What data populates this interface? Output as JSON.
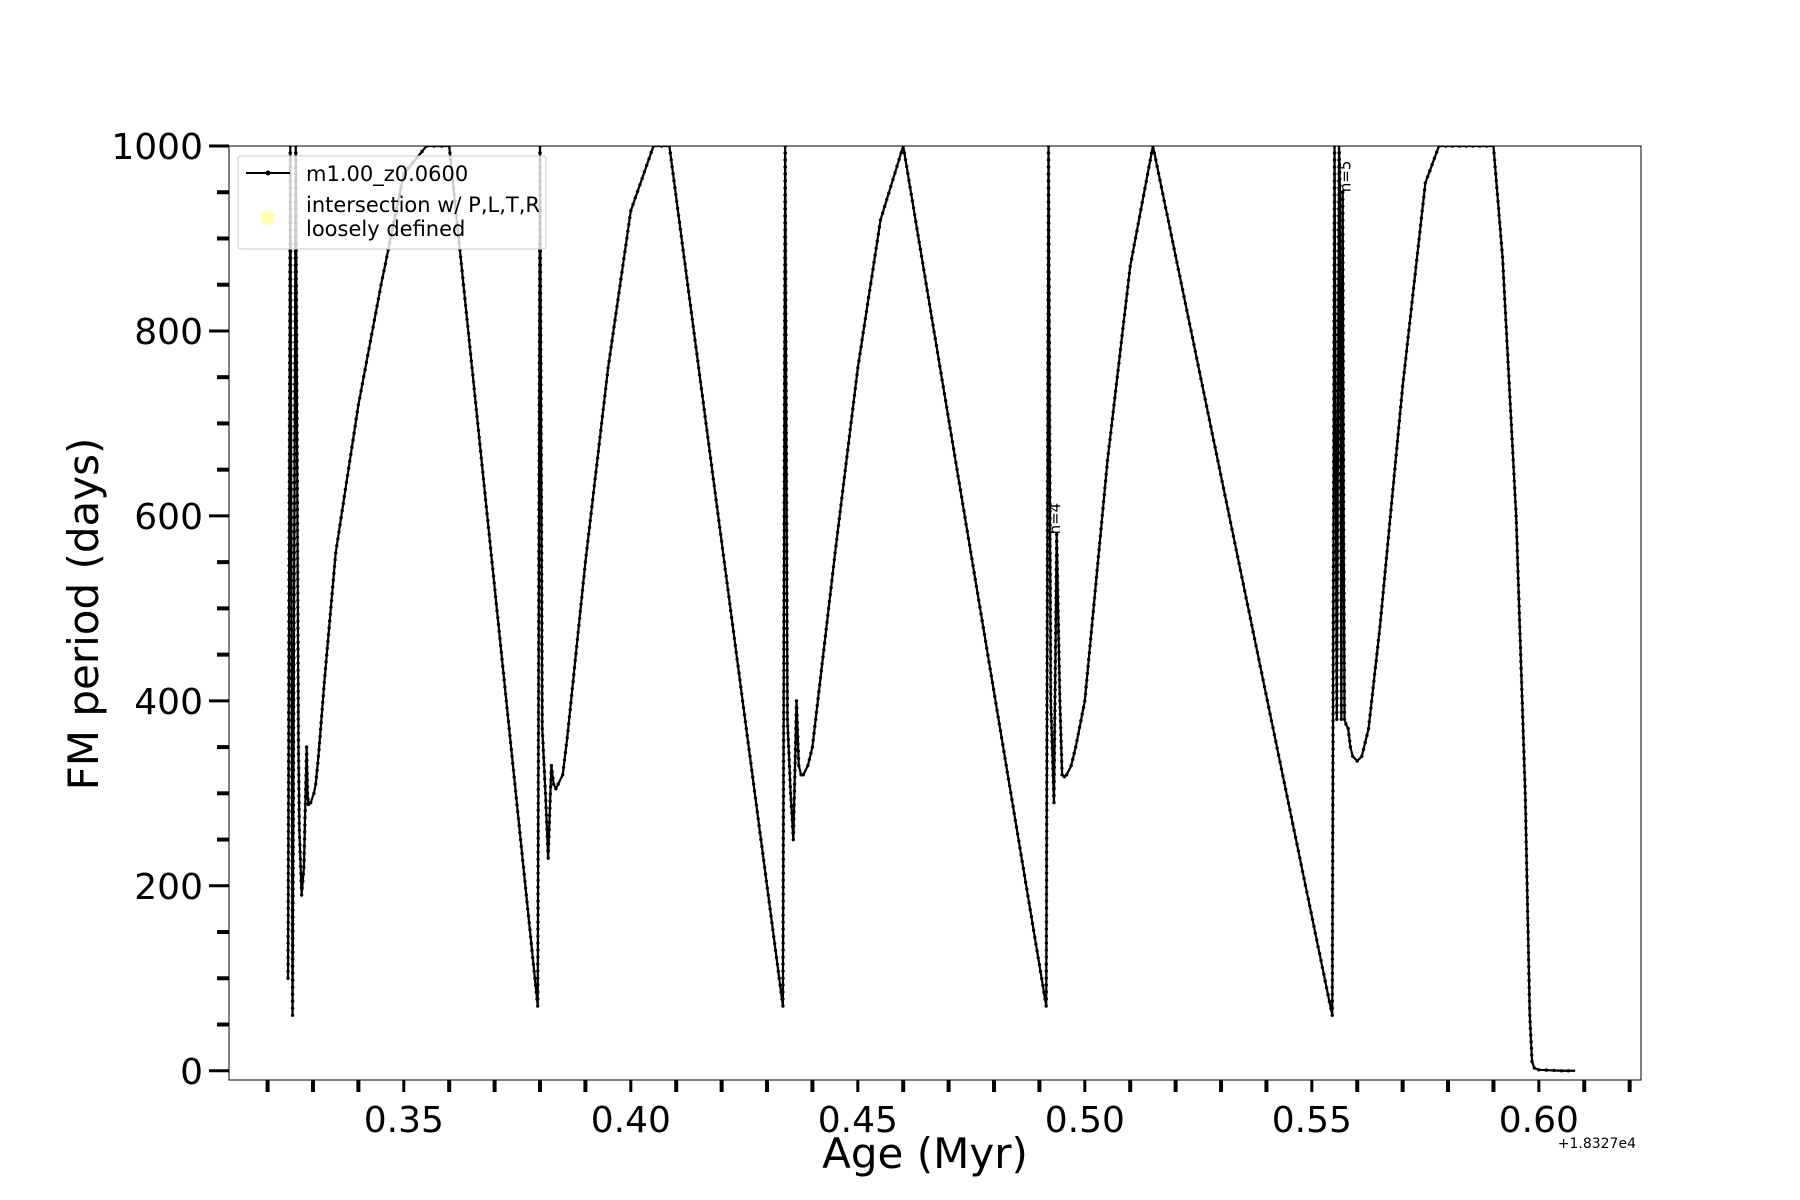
{
  "chart_data": {
    "type": "line",
    "xlabel": "Age (Myr)",
    "ylabel": "FM period (days)",
    "x_offset_label": "+1.8327e4",
    "xlim": [
      0.3115,
      0.6225
    ],
    "ylim": [
      -10,
      1000
    ],
    "x_major_ticks": [
      0.35,
      0.4,
      0.45,
      0.5,
      0.55,
      0.6
    ],
    "x_tick_labels": [
      "0.35",
      "0.40",
      "0.45",
      "0.50",
      "0.55",
      "0.60"
    ],
    "y_major_ticks": [
      0,
      200,
      400,
      600,
      800,
      1000
    ],
    "y_tick_labels": [
      "0",
      "200",
      "400",
      "600",
      "800",
      "1000"
    ],
    "x_minor_step": 0.01,
    "y_minor_step": 50,
    "grid": false,
    "legend": {
      "position": "upper-left",
      "entries": [
        {
          "label": "m1.00_z0.0600",
          "marker": "line-dot",
          "color": "#000000"
        },
        {
          "label": "intersection w/ P,L,T,R\nloosely defined",
          "marker": "circle",
          "color": "#ffffb3"
        }
      ]
    },
    "annotations": [
      {
        "text": "n=4",
        "x": 0.4945,
        "y": 580
      },
      {
        "text": "n=5",
        "x": 0.5585,
        "y": 950
      }
    ],
    "series": [
      {
        "name": "m1.00_z0.0600",
        "color": "#000000",
        "x": [
          0.3245,
          0.325,
          0.3255,
          0.3262,
          0.3268,
          0.327,
          0.3275,
          0.328,
          0.3286,
          0.3288,
          0.329,
          0.3295,
          0.3302,
          0.3306,
          0.3312,
          0.3325,
          0.335,
          0.34,
          0.345,
          0.35,
          0.355,
          0.36,
          0.3795,
          0.38,
          0.3805,
          0.3812,
          0.3818,
          0.3825,
          0.383,
          0.3835,
          0.384,
          0.385,
          0.386,
          0.39,
          0.395,
          0.4,
          0.405,
          0.4085,
          0.4335,
          0.434,
          0.4345,
          0.4352,
          0.4358,
          0.4365,
          0.437,
          0.4375,
          0.438,
          0.439,
          0.44,
          0.445,
          0.45,
          0.455,
          0.46,
          0.4915,
          0.492,
          0.4925,
          0.4932,
          0.4938,
          0.4945,
          0.495,
          0.4955,
          0.496,
          0.497,
          0.498,
          0.5,
          0.505,
          0.51,
          0.515,
          0.5545,
          0.555,
          0.5555,
          0.556,
          0.5562,
          0.5565,
          0.5568,
          0.557,
          0.5572,
          0.5575,
          0.558,
          0.5585,
          0.559,
          0.56,
          0.561,
          0.5625,
          0.565,
          0.57,
          0.575,
          0.578,
          0.59,
          0.592,
          0.595,
          0.597,
          0.598,
          0.5985,
          0.599,
          0.6,
          0.605,
          0.608
        ],
        "y": [
          100,
          1000,
          60,
          1000,
          350,
          260,
          190,
          220,
          350,
          300,
          288,
          290,
          300,
          310,
          340,
          420,
          560,
          720,
          850,
          970,
          1000,
          1000,
          70,
          1000,
          370,
          300,
          230,
          330,
          310,
          305,
          310,
          320,
          360,
          550,
          760,
          930,
          1000,
          1000,
          70,
          1000,
          380,
          300,
          250,
          400,
          330,
          320,
          320,
          330,
          350,
          560,
          760,
          920,
          1000,
          70,
          1000,
          400,
          290,
          580,
          400,
          320,
          318,
          320,
          330,
          350,
          400,
          660,
          870,
          1000,
          60,
          1000,
          380,
          1000,
          950,
          380,
          950,
          600,
          380,
          375,
          370,
          350,
          340,
          335,
          340,
          370,
          480,
          740,
          960,
          1000,
          1000,
          880,
          600,
          300,
          60,
          10,
          3,
          1,
          0,
          0
        ]
      }
    ]
  }
}
